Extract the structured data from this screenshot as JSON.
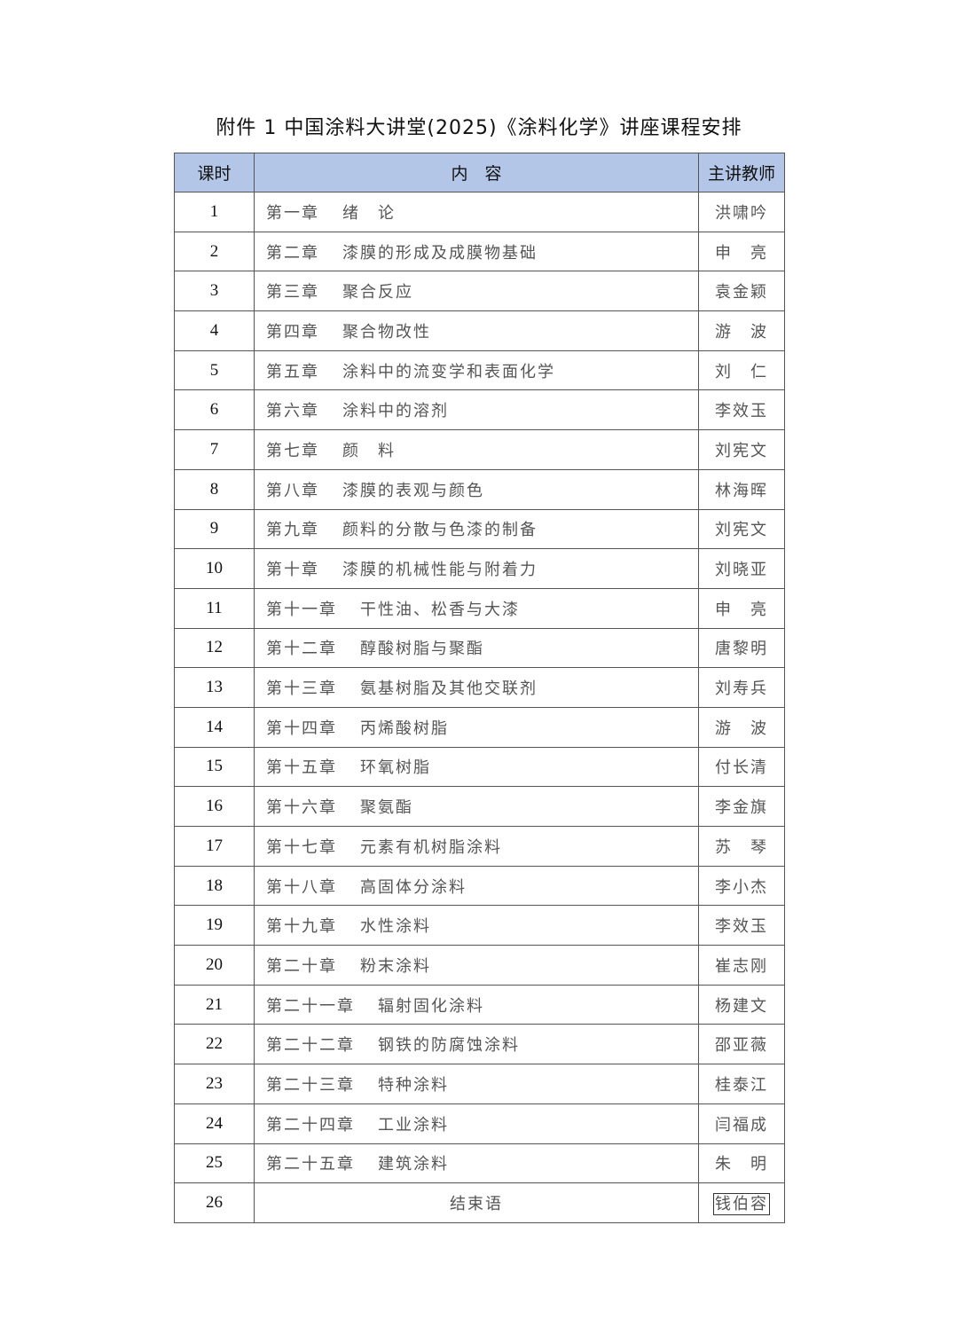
{
  "title": "附件 1  中国涂料大讲堂(2025)《涂料化学》讲座课程安排",
  "headers": {
    "session": "课时",
    "content": "内　容",
    "teacher": "主讲教师"
  },
  "rows": [
    {
      "no": "1",
      "chapter": "第一章",
      "topic": "绪　论",
      "teacher": "洪啸吟"
    },
    {
      "no": "2",
      "chapter": "第二章",
      "topic": "漆膜的形成及成膜物基础",
      "teacher": "申　亮"
    },
    {
      "no": "3",
      "chapter": "第三章",
      "topic": "聚合反应",
      "teacher": "袁金颖"
    },
    {
      "no": "4",
      "chapter": "第四章",
      "topic": "聚合物改性",
      "teacher": "游　波"
    },
    {
      "no": "5",
      "chapter": "第五章",
      "topic": "涂料中的流变学和表面化学",
      "teacher": "刘　仁"
    },
    {
      "no": "6",
      "chapter": "第六章",
      "topic": "涂料中的溶剂",
      "teacher": "李效玉"
    },
    {
      "no": "7",
      "chapter": "第七章",
      "topic": "颜　料",
      "teacher": "刘宪文"
    },
    {
      "no": "8",
      "chapter": "第八章",
      "topic": "漆膜的表观与颜色",
      "teacher": "林海晖"
    },
    {
      "no": "9",
      "chapter": "第九章",
      "topic": "颜料的分散与色漆的制备",
      "teacher": "刘宪文"
    },
    {
      "no": "10",
      "chapter": "第十章",
      "topic": "漆膜的机械性能与附着力",
      "teacher": "刘晓亚"
    },
    {
      "no": "11",
      "chapter": "第十一章",
      "topic": "干性油、松香与大漆",
      "teacher": "申　亮"
    },
    {
      "no": "12",
      "chapter": "第十二章",
      "topic": "醇酸树脂与聚酯",
      "teacher": "唐黎明"
    },
    {
      "no": "13",
      "chapter": "第十三章",
      "topic": "氨基树脂及其他交联剂",
      "teacher": "刘寿兵"
    },
    {
      "no": "14",
      "chapter": "第十四章",
      "topic": "丙烯酸树脂",
      "teacher": "游　波"
    },
    {
      "no": "15",
      "chapter": "第十五章",
      "topic": "环氧树脂",
      "teacher": "付长清"
    },
    {
      "no": "16",
      "chapter": "第十六章",
      "topic": "聚氨酯",
      "teacher": "李金旗"
    },
    {
      "no": "17",
      "chapter": "第十七章",
      "topic": "元素有机树脂涂料",
      "teacher": "苏　琴"
    },
    {
      "no": "18",
      "chapter": "第十八章",
      "topic": "高固体分涂料",
      "teacher": "李小杰"
    },
    {
      "no": "19",
      "chapter": "第十九章",
      "topic": "水性涂料",
      "teacher": "李效玉"
    },
    {
      "no": "20",
      "chapter": "第二十章",
      "topic": "粉末涂料",
      "teacher": "崔志刚"
    },
    {
      "no": "21",
      "chapter": "第二十一章",
      "topic": "辐射固化涂料",
      "teacher": "杨建文"
    },
    {
      "no": "22",
      "chapter": "第二十二章",
      "topic": "钢铁的防腐蚀涂料",
      "teacher": "邵亚薇"
    },
    {
      "no": "23",
      "chapter": "第二十三章",
      "topic": "特种涂料",
      "teacher": "桂泰江"
    },
    {
      "no": "24",
      "chapter": "第二十四章",
      "topic": "工业涂料",
      "teacher": "闫福成"
    },
    {
      "no": "25",
      "chapter": "第二十五章",
      "topic": "建筑涂料",
      "teacher": "朱　明"
    }
  ],
  "last_row": {
    "no": "26",
    "topic": "结束语",
    "teacher": "钱伯容"
  }
}
